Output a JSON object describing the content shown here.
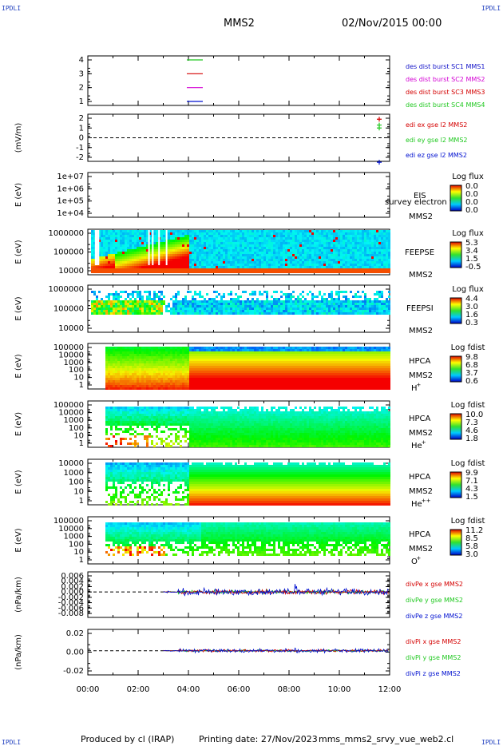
{
  "header": {
    "corner_labels": [
      "IPDLI",
      "IPDLI",
      "IPDLI",
      "IPDLI"
    ],
    "spacecraft": "MMS2",
    "date": "02/Nov/2015 00:00"
  },
  "footer": {
    "produced_by": "Produced by cl (IRAP)",
    "printing_date": "Printing date: 27/Nov/2023",
    "script": "mms_mms2_srvy_vue_web2.cl"
  },
  "colors": {
    "red": "#d40000",
    "magenta": "#d400d4",
    "green": "#1fc81f",
    "blue": "#0010d0"
  },
  "chart_data": [
    {
      "id": "burst",
      "type": "timeline",
      "yticks": [
        "4",
        "3",
        "2",
        "1"
      ],
      "legend": [
        {
          "text": "des dist burst SC1 MMS1",
          "color": "#1010c8"
        },
        {
          "text": "des dist burst SC2 MMS2",
          "color": "#d400d4"
        },
        {
          "text": "des dist burst SC3 MMS3",
          "color": "#d40000"
        },
        {
          "text": "des dist burst SC4 MMS4",
          "color": "#1fc81f"
        }
      ]
    },
    {
      "id": "edi",
      "type": "scatter",
      "ylabel": "(mV/m)",
      "yticks": [
        "2",
        "1",
        "0",
        "-1",
        "-2"
      ],
      "legend": [
        {
          "text": "edi ex gse l2 MMS2",
          "color": "#d40000"
        },
        {
          "text": "edi ey gse l2 MMS2",
          "color": "#1fc81f"
        },
        {
          "text": "edi ez gse l2 MMS2",
          "color": "#0010d0"
        }
      ],
      "points": [
        {
          "x": "11:20",
          "y": 1.9,
          "series": "ex"
        },
        {
          "x": "11:20",
          "y": 1.3,
          "series": "ey"
        },
        {
          "x": "11:20",
          "y": 1.0,
          "series": "ey"
        },
        {
          "x": "11:20",
          "y": -2.5,
          "series": "ez"
        }
      ]
    },
    {
      "id": "eis",
      "type": "heatmap",
      "ylabel": "E (eV)",
      "yticks": [
        "1e+07",
        "1e+06",
        "1e+05",
        "1e+04"
      ],
      "instrument": "EIS",
      "sc": "MMS2",
      "note": "survey electron to",
      "cbar_title": "Log flux",
      "cbar_ticks": [
        "0.0",
        "0.0",
        "0.0",
        "0.0"
      ]
    },
    {
      "id": "feepse",
      "type": "heatmap",
      "ylabel": "E (eV)",
      "yticks": [
        "1000000",
        "100000",
        "10000"
      ],
      "instrument": "FEEPSE",
      "sc": "MMS2",
      "cbar_title": "Log flux",
      "cbar_ticks": [
        "5.3",
        "3.4",
        "1.5",
        "-0.5"
      ]
    },
    {
      "id": "feepsi",
      "type": "heatmap",
      "ylabel": "E (eV)",
      "yticks": [
        "1000000",
        "100000",
        "10000"
      ],
      "instrument": "FEEPSI",
      "sc": "MMS2",
      "cbar_title": "Log flux",
      "cbar_ticks": [
        "4.4",
        "3.0",
        "1.6",
        "0.3"
      ]
    },
    {
      "id": "hpca_h",
      "type": "heatmap",
      "ylabel": "E (eV)",
      "yticks": [
        "100000",
        "10000",
        "1000",
        "100",
        "10",
        "1"
      ],
      "instrument": "HPCA",
      "sc": "MMS2",
      "species": "H",
      "charge": "+",
      "cbar_title": "Log fdist",
      "cbar_ticks": [
        "9.8",
        "6.8",
        "3.7",
        "0.6"
      ]
    },
    {
      "id": "hpca_he",
      "type": "heatmap",
      "ylabel": "E (eV)",
      "yticks": [
        "100000",
        "10000",
        "1000",
        "100",
        "10",
        "1"
      ],
      "instrument": "HPCA",
      "sc": "MMS2",
      "species": "He",
      "charge": "+",
      "cbar_title": "Log fdist",
      "cbar_ticks": [
        "10.0",
        "7.3",
        "4.6",
        "1.8"
      ]
    },
    {
      "id": "hpca_hepp",
      "type": "heatmap",
      "ylabel": "E (eV)",
      "yticks": [
        "10000",
        "1000",
        "100",
        "10",
        "1"
      ],
      "instrument": "HPCA",
      "sc": "MMS2",
      "species": "He",
      "charge": "++",
      "cbar_title": "Log fdist",
      "cbar_ticks": [
        "9.9",
        "7.1",
        "4.3",
        "1.5"
      ]
    },
    {
      "id": "hpca_o",
      "type": "heatmap",
      "ylabel": "E (eV)",
      "yticks": [
        "100000",
        "10000",
        "1000",
        "100",
        "10",
        "1"
      ],
      "instrument": "HPCA",
      "sc": "MMS2",
      "species": "O",
      "charge": "+",
      "cbar_title": "Log fdist",
      "cbar_ticks": [
        "11.2",
        "8.5",
        "5.8",
        "3.0"
      ]
    },
    {
      "id": "divpe",
      "type": "line",
      "ylabel": "(nPa/km)",
      "yticks": [
        "0.006",
        "0.004",
        "0.002",
        "0.000",
        "-0.002",
        "-0.004",
        "-0.006",
        "-0.008"
      ],
      "ylim": [
        -0.008,
        0.006
      ],
      "legend": [
        {
          "text": "divPe x gse MMS2",
          "color": "#d40000"
        },
        {
          "text": "divPe y gse MMS2",
          "color": "#1fc81f"
        },
        {
          "text": "divPe z gse MMS2",
          "color": "#0010d0"
        }
      ]
    },
    {
      "id": "divpi",
      "type": "line",
      "ylabel": "(nPa/km)",
      "yticks": [
        "0.02",
        "0.00",
        "-0.02"
      ],
      "ylim": [
        -0.035,
        0.03
      ],
      "legend": [
        {
          "text": "divPi x gse MMS2",
          "color": "#d40000"
        },
        {
          "text": "divPi y gse MMS2",
          "color": "#1fc81f"
        },
        {
          "text": "divPi z gse MMS2",
          "color": "#0010d0"
        }
      ]
    }
  ],
  "time_axis": {
    "ticks": [
      "00:00",
      "02:00",
      "04:00",
      "06:00",
      "08:00",
      "10:00",
      "12:00"
    ],
    "range_hours": [
      0,
      12
    ]
  }
}
